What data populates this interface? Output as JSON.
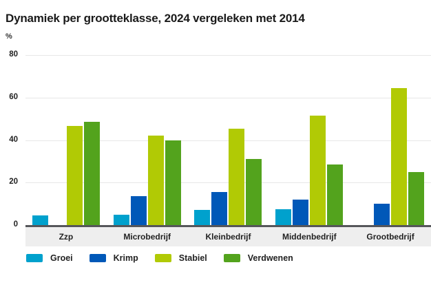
{
  "title": "Dynamiek per grootteklasse, 2024 vergeleken met 2014",
  "unit_label": "%",
  "colors": {
    "axis_line": "#55565a",
    "gridline": "#e7e7e7",
    "category_band": "#eeeeee",
    "text": "#222222",
    "background": "#ffffff"
  },
  "chart_data": {
    "type": "bar",
    "title": "Dynamiek per grootteklasse, 2024 vergeleken met 2014",
    "xlabel": "",
    "ylabel": "%",
    "ylim": [
      0,
      80
    ],
    "yticks": [
      0,
      20,
      40,
      60,
      80
    ],
    "grid": true,
    "legend_position": "bottom",
    "categories": [
      "Zzp",
      "Microbedrijf",
      "Kleinbedrijf",
      "Middenbedrijf",
      "Grootbedrijf"
    ],
    "series": [
      {
        "name": "Groei",
        "color": "#00a1cd",
        "values": [
          4.5,
          5,
          7,
          7.5,
          0
        ]
      },
      {
        "name": "Krimp",
        "color": "#0058b8",
        "values": [
          0,
          13.5,
          15.5,
          12,
          10
        ]
      },
      {
        "name": "Stabiel",
        "color": "#b1ca05",
        "values": [
          46.5,
          42,
          45.5,
          51.5,
          64.5
        ]
      },
      {
        "name": "Verdwenen",
        "color": "#53a31d",
        "values": [
          48.5,
          40,
          31,
          28.5,
          25
        ]
      }
    ]
  }
}
